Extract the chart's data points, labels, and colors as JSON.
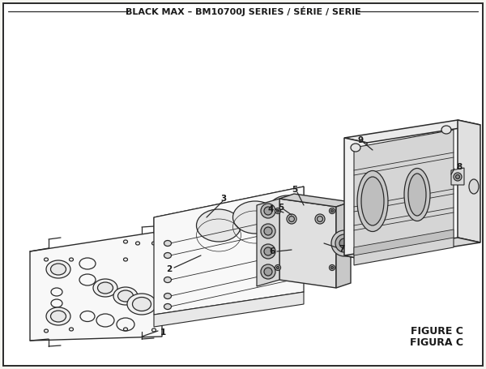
{
  "title": "BLACK MAX – BM10700J SERIES / SÉRIE / SERIE",
  "figure_label_1": "FIGURE C",
  "figure_label_2": "FIGURA C",
  "bg_color": "#f5f5f0",
  "line_color": "#2a2a2a",
  "text_color": "#1a1a1a"
}
